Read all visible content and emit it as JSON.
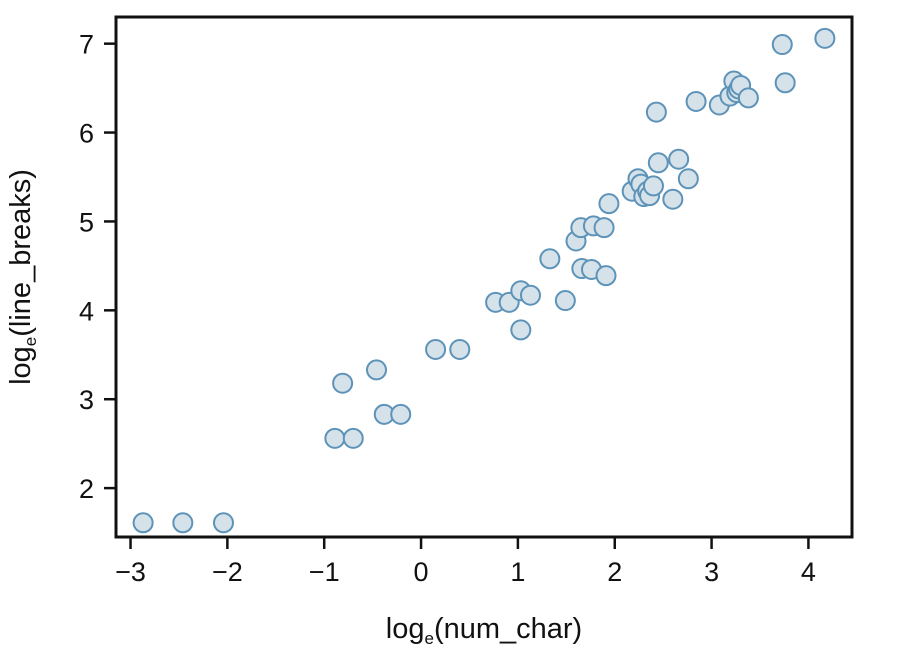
{
  "chart_data": {
    "type": "scatter",
    "title": "",
    "xlabel": {
      "prefix": "log",
      "subscript": "e",
      "suffix": "(num_char)"
    },
    "ylabel": {
      "prefix": "log",
      "subscript": "e",
      "suffix": "(line_breaks)"
    },
    "xlim": [
      -3.15,
      4.45
    ],
    "ylim": [
      1.45,
      7.3
    ],
    "x_ticks": [
      -3,
      -2,
      -1,
      0,
      1,
      2,
      3,
      4
    ],
    "x_tick_labels": [
      "−3",
      "−2",
      "−1",
      "0",
      "1",
      "2",
      "3",
      "4"
    ],
    "y_ticks": [
      2,
      3,
      4,
      5,
      6,
      7
    ],
    "y_tick_labels": [
      "2",
      "3",
      "4",
      "5",
      "6",
      "7"
    ],
    "grid": false,
    "legend": "none",
    "marker_fill": "#d6e2ea",
    "marker_edge": "#5d93b8",
    "points": [
      {
        "x": -2.87,
        "y": 1.61
      },
      {
        "x": -2.46,
        "y": 1.61
      },
      {
        "x": -2.04,
        "y": 1.61
      },
      {
        "x": -0.89,
        "y": 2.56
      },
      {
        "x": -0.7,
        "y": 2.56
      },
      {
        "x": -0.81,
        "y": 3.18
      },
      {
        "x": -0.46,
        "y": 3.33
      },
      {
        "x": -0.38,
        "y": 2.83
      },
      {
        "x": -0.21,
        "y": 2.83
      },
      {
        "x": 0.15,
        "y": 3.56
      },
      {
        "x": 0.4,
        "y": 3.56
      },
      {
        "x": 0.77,
        "y": 4.09
      },
      {
        "x": 0.91,
        "y": 4.09
      },
      {
        "x": 1.03,
        "y": 4.22
      },
      {
        "x": 1.13,
        "y": 4.17
      },
      {
        "x": 1.03,
        "y": 3.78
      },
      {
        "x": 1.33,
        "y": 4.58
      },
      {
        "x": 1.49,
        "y": 4.11
      },
      {
        "x": 1.6,
        "y": 4.78
      },
      {
        "x": 1.65,
        "y": 4.93
      },
      {
        "x": 1.78,
        "y": 4.95
      },
      {
        "x": 1.66,
        "y": 4.47
      },
      {
        "x": 1.76,
        "y": 4.46
      },
      {
        "x": 1.91,
        "y": 4.39
      },
      {
        "x": 1.89,
        "y": 4.93
      },
      {
        "x": 1.94,
        "y": 5.2
      },
      {
        "x": 2.18,
        "y": 5.34
      },
      {
        "x": 2.24,
        "y": 5.48
      },
      {
        "x": 2.27,
        "y": 5.42
      },
      {
        "x": 2.3,
        "y": 5.28
      },
      {
        "x": 2.34,
        "y": 5.34
      },
      {
        "x": 2.36,
        "y": 5.29
      },
      {
        "x": 2.4,
        "y": 5.4
      },
      {
        "x": 2.43,
        "y": 6.23
      },
      {
        "x": 2.45,
        "y": 5.66
      },
      {
        "x": 2.6,
        "y": 5.25
      },
      {
        "x": 2.66,
        "y": 5.7
      },
      {
        "x": 2.76,
        "y": 5.48
      },
      {
        "x": 2.84,
        "y": 6.35
      },
      {
        "x": 3.08,
        "y": 6.31
      },
      {
        "x": 3.19,
        "y": 6.41
      },
      {
        "x": 3.23,
        "y": 6.58
      },
      {
        "x": 3.26,
        "y": 6.45
      },
      {
        "x": 3.28,
        "y": 6.49
      },
      {
        "x": 3.3,
        "y": 6.53
      },
      {
        "x": 3.38,
        "y": 6.39
      },
      {
        "x": 3.73,
        "y": 6.99
      },
      {
        "x": 3.76,
        "y": 6.56
      },
      {
        "x": 4.17,
        "y": 7.06
      }
    ]
  }
}
